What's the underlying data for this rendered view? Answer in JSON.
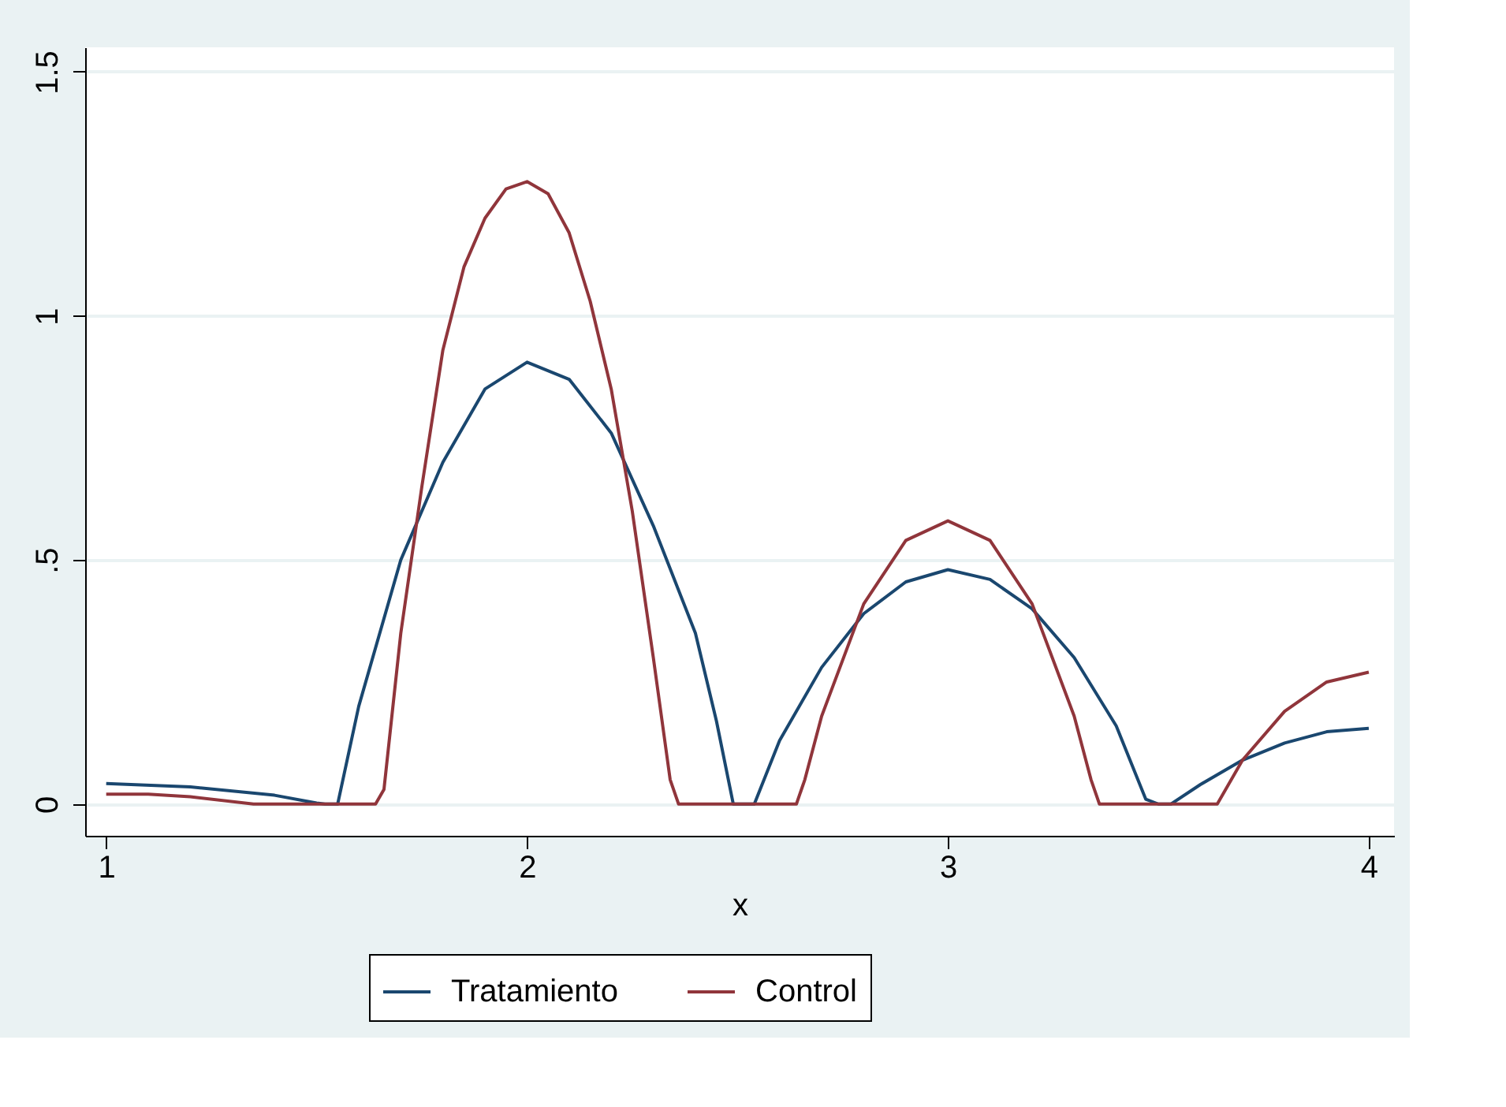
{
  "chart_data": {
    "type": "line",
    "xlabel": "x",
    "xlim": [
      0.95,
      4.06
    ],
    "ylim": [
      -0.065,
      1.55
    ],
    "xticks": [
      1,
      2,
      3,
      4
    ],
    "yticks": [
      {
        "value": 0,
        "label": "0"
      },
      {
        "value": 0.5,
        "label": ".5"
      },
      {
        "value": 1,
        "label": "1"
      },
      {
        "value": 1.5,
        "label": "1.5"
      }
    ],
    "grid": "y",
    "legend": "bottom",
    "line_style": "solid",
    "marker": "none",
    "series": [
      {
        "name": "Tratamiento",
        "color": "#1a476f",
        "x": [
          1,
          1.2,
          1.4,
          1.5,
          1.52,
          1.55,
          1.6,
          1.7,
          1.8,
          1.9,
          2,
          2.1,
          2.2,
          2.3,
          2.4,
          2.45,
          2.49,
          2.54,
          2.6,
          2.7,
          2.8,
          2.9,
          3,
          3.1,
          3.2,
          3.3,
          3.4,
          3.47,
          3.5,
          3.53,
          3.6,
          3.7,
          3.8,
          3.9,
          4
        ],
        "values": [
          0.042,
          0.035,
          0.018,
          0.002,
          0,
          0,
          0.2,
          0.5,
          0.7,
          0.85,
          0.905,
          0.87,
          0.76,
          0.57,
          0.35,
          0.17,
          0,
          0,
          0.13,
          0.28,
          0.39,
          0.455,
          0.48,
          0.46,
          0.4,
          0.3,
          0.16,
          0.01,
          0,
          0,
          0.04,
          0.09,
          0.125,
          0.148,
          0.155
        ]
      },
      {
        "name": "Control",
        "color": "#90353b",
        "x": [
          1,
          1.1,
          1.2,
          1.35,
          1.64,
          1.66,
          1.7,
          1.75,
          1.8,
          1.85,
          1.9,
          1.95,
          2,
          2.05,
          2.1,
          2.15,
          2.2,
          2.25,
          2.3,
          2.34,
          2.36,
          2.64,
          2.66,
          2.7,
          2.8,
          2.9,
          3,
          3.1,
          3.2,
          3.3,
          3.34,
          3.36,
          3.64,
          3.7,
          3.8,
          3.9,
          4
        ],
        "values": [
          0.02,
          0.02,
          0.015,
          0,
          0,
          0.03,
          0.35,
          0.65,
          0.93,
          1.1,
          1.2,
          1.26,
          1.275,
          1.25,
          1.17,
          1.03,
          0.85,
          0.6,
          0.3,
          0.05,
          0,
          0,
          0.05,
          0.18,
          0.41,
          0.54,
          0.58,
          0.54,
          0.41,
          0.18,
          0.05,
          0,
          0,
          0.09,
          0.19,
          0.25,
          0.27
        ]
      }
    ]
  }
}
